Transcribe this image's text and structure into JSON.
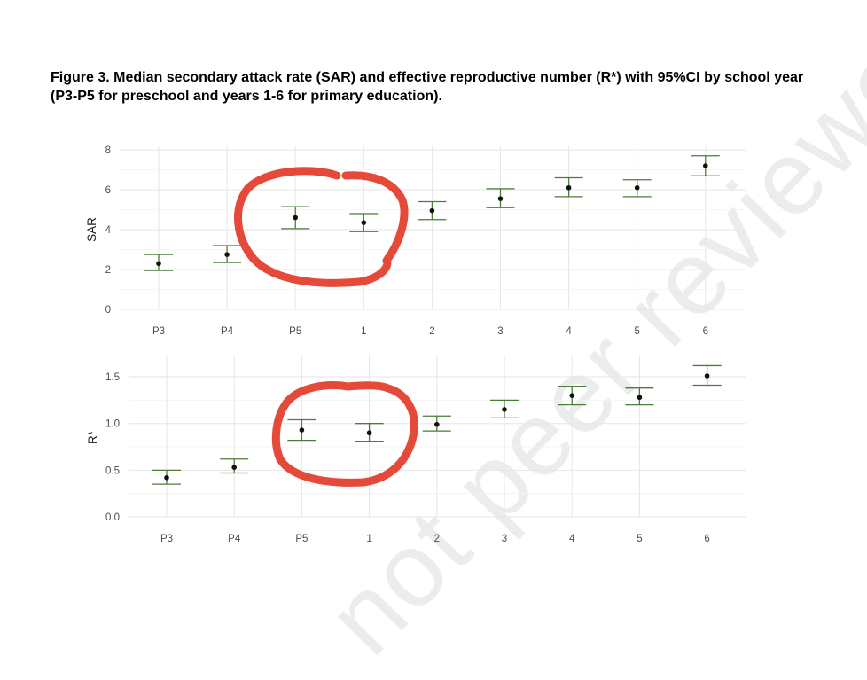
{
  "figure": {
    "caption": "Figure 3. Median secondary attack rate (SAR) and effective reproductive number (R*) with 95%CI by school year (P3-P5 for preschool and years 1-6 for primary education)."
  },
  "watermark": {
    "text": "not peer reviewed",
    "color": "#ececec"
  },
  "colors": {
    "errorbar": "#4a7c3a",
    "point": "#111111",
    "grid_major": "#e6e6e6",
    "grid_minor": "#f3f3f3",
    "annotation": "#e4493a"
  },
  "chart_data": [
    {
      "type": "scatter",
      "panel": "top",
      "ylabel": "SAR",
      "xlabel": "",
      "categories": [
        "P3",
        "P4",
        "P5",
        "1",
        "2",
        "3",
        "4",
        "5",
        "6"
      ],
      "values": [
        2.3,
        2.75,
        4.6,
        4.35,
        4.95,
        5.55,
        6.1,
        6.1,
        7.2
      ],
      "ci_lower": [
        1.95,
        2.35,
        4.05,
        3.9,
        4.5,
        5.1,
        5.65,
        5.65,
        6.7
      ],
      "ci_upper": [
        2.75,
        3.2,
        5.15,
        4.8,
        5.4,
        6.05,
        6.6,
        6.5,
        7.7
      ],
      "ylim": [
        0,
        8
      ],
      "yticks": [
        0,
        2,
        4,
        6,
        8
      ],
      "grid": true
    },
    {
      "type": "scatter",
      "panel": "bottom",
      "ylabel": "R*",
      "xlabel": "",
      "categories": [
        "P3",
        "P4",
        "P5",
        "1",
        "2",
        "3",
        "4",
        "5",
        "6"
      ],
      "values": [
        0.42,
        0.53,
        0.93,
        0.9,
        0.99,
        1.15,
        1.3,
        1.28,
        1.51
      ],
      "ci_lower": [
        0.35,
        0.47,
        0.82,
        0.81,
        0.92,
        1.06,
        1.2,
        1.2,
        1.41
      ],
      "ci_upper": [
        0.5,
        0.62,
        1.04,
        1.0,
        1.08,
        1.25,
        1.4,
        1.38,
        1.62
      ],
      "ylim": [
        0,
        1.7
      ],
      "yticks": [
        0.0,
        0.5,
        1.0,
        1.5
      ],
      "ytick_labels": [
        "0.0",
        "0.5",
        "1.0",
        "1.5"
      ],
      "grid": true
    }
  ]
}
